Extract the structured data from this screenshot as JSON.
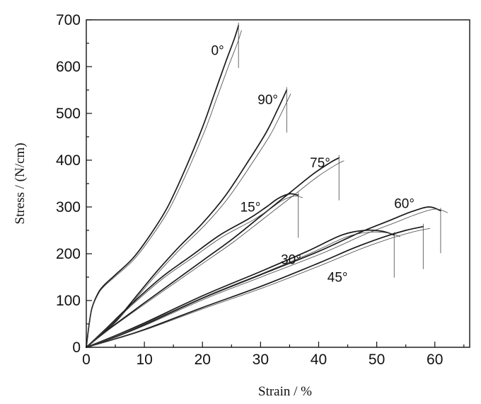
{
  "chart_data": {
    "type": "line",
    "title": "",
    "xlabel": "Strain / %",
    "ylabel": "Stress / (N/cm)",
    "xlim": [
      0,
      66
    ],
    "ylim": [
      0,
      700
    ],
    "xticks": [
      "0",
      "10",
      "20",
      "30",
      "40",
      "50",
      "60"
    ],
    "yticks": [
      "0",
      "100",
      "200",
      "300",
      "400",
      "500",
      "600",
      "700"
    ],
    "grid": false,
    "series": [
      {
        "name": "0°",
        "points": [
          [
            0,
            0
          ],
          [
            0.5,
            50
          ],
          [
            1,
            85
          ],
          [
            2,
            115
          ],
          [
            3,
            132
          ],
          [
            5,
            155
          ],
          [
            8,
            190
          ],
          [
            11,
            240
          ],
          [
            14,
            300
          ],
          [
            17,
            380
          ],
          [
            20,
            470
          ],
          [
            22,
            540
          ],
          [
            24,
            610
          ],
          [
            25.5,
            660
          ],
          [
            26.2,
            688
          ]
        ],
        "label_at": [
          21.5,
          625
        ]
      },
      {
        "name": "90°",
        "points": [
          [
            0,
            0
          ],
          [
            2,
            22
          ],
          [
            5,
            55
          ],
          [
            8,
            100
          ],
          [
            12,
            160
          ],
          [
            16,
            215
          ],
          [
            20,
            265
          ],
          [
            24,
            325
          ],
          [
            28,
            400
          ],
          [
            31,
            460
          ],
          [
            33,
            510
          ],
          [
            34.5,
            550
          ]
        ],
        "label_at": [
          29.5,
          520
        ]
      },
      {
        "name": "75°",
        "points": [
          [
            0,
            0
          ],
          [
            4,
            40
          ],
          [
            10,
            95
          ],
          [
            15,
            140
          ],
          [
            20,
            185
          ],
          [
            25,
            230
          ],
          [
            30,
            280
          ],
          [
            35,
            330
          ],
          [
            39,
            370
          ],
          [
            42,
            395
          ],
          [
            43.5,
            405
          ]
        ],
        "label_at": [
          38.5,
          385
        ]
      },
      {
        "name": "15°",
        "points": [
          [
            0,
            0
          ],
          [
            3,
            35
          ],
          [
            8,
            95
          ],
          [
            13,
            150
          ],
          [
            18,
            195
          ],
          [
            23,
            240
          ],
          [
            28,
            275
          ],
          [
            31,
            300
          ],
          [
            33,
            318
          ],
          [
            35,
            328
          ],
          [
            36.5,
            325
          ]
        ],
        "label_at": [
          26.5,
          290
        ]
      },
      {
        "name": "60°",
        "points": [
          [
            0,
            0
          ],
          [
            5,
            22
          ],
          [
            10,
            48
          ],
          [
            20,
            105
          ],
          [
            30,
            155
          ],
          [
            40,
            205
          ],
          [
            47,
            245
          ],
          [
            52,
            270
          ],
          [
            56,
            290
          ],
          [
            59,
            300
          ],
          [
            61,
            292
          ]
        ],
        "label_at": [
          53,
          298
        ]
      },
      {
        "name": "30°",
        "points": [
          [
            0,
            0
          ],
          [
            5,
            25
          ],
          [
            10,
            52
          ],
          [
            20,
            110
          ],
          [
            30,
            162
          ],
          [
            38,
            205
          ],
          [
            44,
            240
          ],
          [
            48,
            250
          ],
          [
            51,
            248
          ],
          [
            53,
            240
          ]
        ],
        "label_at": [
          33.5,
          178
        ]
      },
      {
        "name": "45°",
        "points": [
          [
            0,
            0
          ],
          [
            5,
            18
          ],
          [
            10,
            38
          ],
          [
            20,
            85
          ],
          [
            30,
            130
          ],
          [
            40,
            180
          ],
          [
            46,
            212
          ],
          [
            51,
            235
          ],
          [
            55,
            250
          ],
          [
            58,
            258
          ]
        ],
        "label_at": [
          41.5,
          140
        ]
      }
    ]
  }
}
